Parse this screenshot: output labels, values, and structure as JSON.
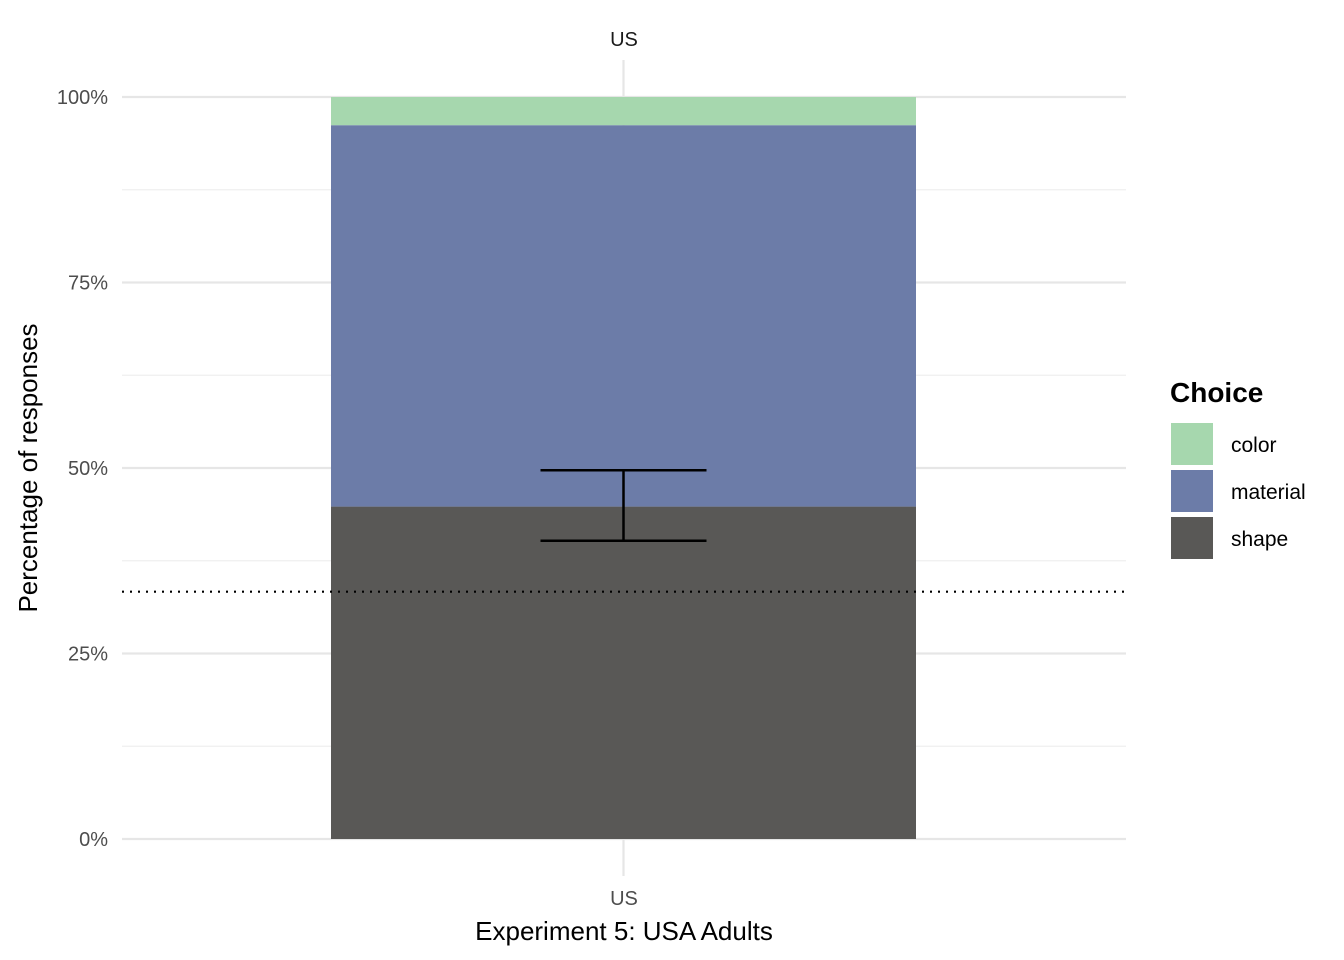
{
  "chart_data": {
    "type": "bar",
    "stacked": true,
    "facet": "US",
    "categories": [
      "US"
    ],
    "series": [
      {
        "name": "shape",
        "values": [
          0.448
        ],
        "color": "#595856"
      },
      {
        "name": "material",
        "values": [
          0.514
        ],
        "color": "#6c7ca8"
      },
      {
        "name": "color",
        "values": [
          0.038
        ],
        "color": "#a6d7ae"
      }
    ],
    "error_bar": {
      "category": "US",
      "low": 0.402,
      "high": 0.497
    },
    "reference_line": {
      "y": 0.3333,
      "style": "dotted"
    },
    "ylim": [
      0,
      1
    ],
    "yticks": [
      0,
      0.25,
      0.5,
      0.75,
      1.0
    ],
    "ytick_labels": [
      "0%",
      "25%",
      "50%",
      "75%",
      "100%"
    ],
    "xlabel": "Experiment 5: USA Adults",
    "ylabel": "Percentage of responses",
    "legend": {
      "title": "Choice",
      "position": "right",
      "entries": [
        "color",
        "material",
        "shape"
      ]
    },
    "grid": true
  }
}
